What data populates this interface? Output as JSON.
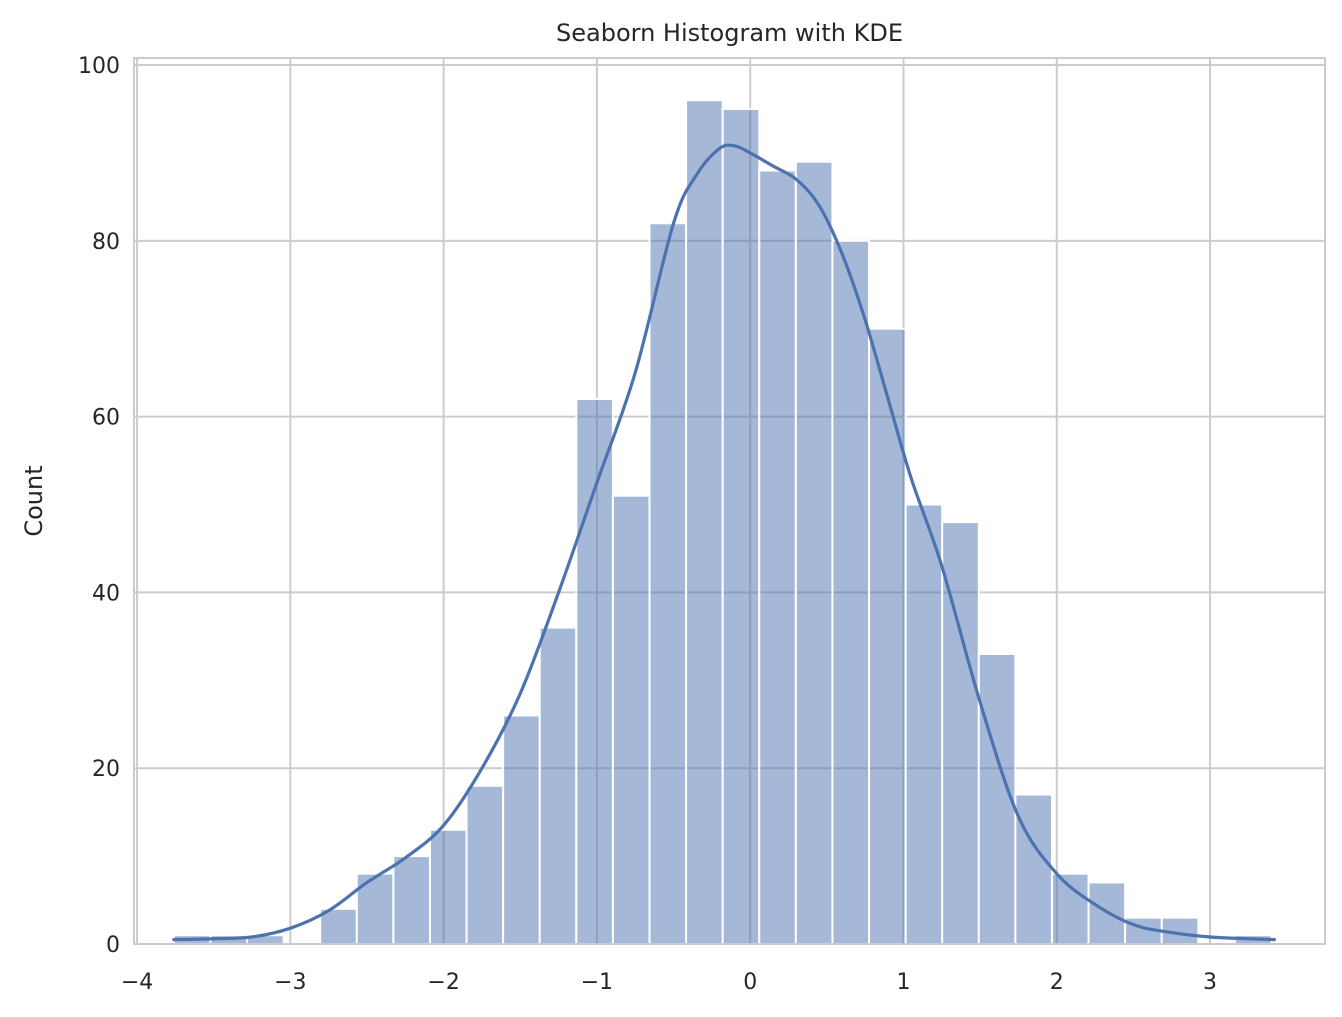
{
  "chart_data": {
    "type": "bar",
    "title": "Seaborn Histogram with KDE",
    "xlabel": "",
    "ylabel": "Count",
    "xlim": [
      -4.02,
      3.75
    ],
    "ylim": [
      0,
      100.8
    ],
    "xticks": [
      -4,
      -3,
      -2,
      -1,
      0,
      1,
      2,
      3
    ],
    "xtick_labels": [
      "−4",
      "−3",
      "−2",
      "−1",
      "0",
      "1",
      "2",
      "3"
    ],
    "yticks": [
      0,
      20,
      40,
      60,
      80,
      100
    ],
    "ytick_labels": [
      "0",
      "20",
      "40",
      "60",
      "80",
      "100"
    ],
    "grid": true,
    "colors": {
      "bar": "#4c72b0",
      "bar_opacity": 0.5,
      "kde": "#4c72b0",
      "grid": "#cccccc"
    },
    "bin_start": -3.76,
    "bin_width": 0.2387,
    "bin_counts": [
      1,
      1,
      1,
      0,
      4,
      8,
      10,
      13,
      18,
      26,
      36,
      62,
      51,
      82,
      96,
      95,
      88,
      89,
      80,
      70,
      50,
      48,
      33,
      17,
      8,
      7,
      3,
      3,
      0,
      1
    ],
    "kde": {
      "x": [
        -3.76,
        -3.5,
        -3.25,
        -3.0,
        -2.75,
        -2.5,
        -2.25,
        -2.0,
        -1.75,
        -1.5,
        -1.25,
        -1.0,
        -0.75,
        -0.5,
        -0.35,
        -0.2,
        -0.1,
        0.0,
        0.15,
        0.3,
        0.45,
        0.6,
        0.75,
        0.9,
        1.05,
        1.25,
        1.5,
        1.75,
        2.0,
        2.25,
        2.5,
        2.75,
        3.0,
        3.25,
        3.42
      ],
      "y": [
        0.5,
        0.6,
        0.8,
        1.8,
        3.8,
        7.0,
        9.8,
        13.5,
        20.0,
        28.5,
        40.0,
        52.5,
        65.0,
        82.0,
        87.5,
        90.5,
        90.8,
        90.0,
        88.5,
        87.0,
        84.0,
        78.5,
        71.0,
        62.0,
        53.0,
        43.0,
        27.5,
        14.5,
        8.0,
        4.5,
        2.2,
        1.3,
        0.8,
        0.6,
        0.5
      ]
    }
  }
}
